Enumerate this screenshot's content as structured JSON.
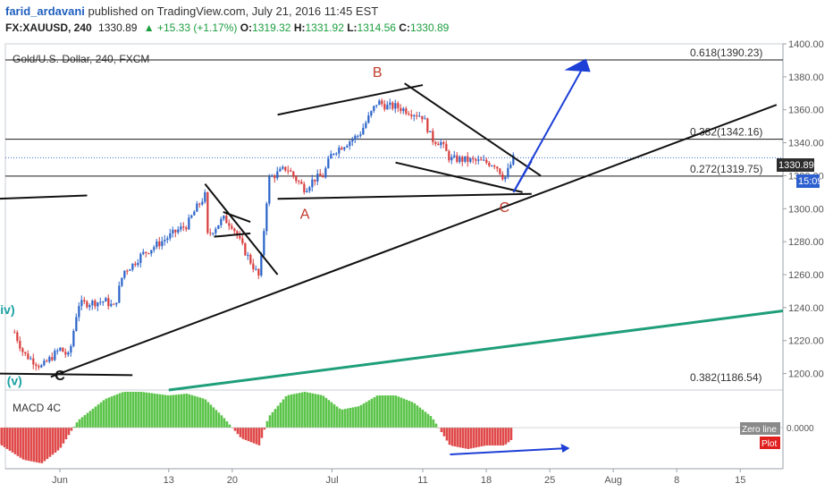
{
  "header": {
    "author": "farid_ardavani",
    "published_text": " published on TradingView.com, July 21, 2016 11:45 EST",
    "symbol": "FX:XAUUSD, 240",
    "last": "1330.89",
    "change": "▲ +15.33 (+1.17%)",
    "o_label": "O:",
    "o_value": "1319.32",
    "h_label": "H:",
    "h_value": "1331.92",
    "l_label": "L:",
    "l_value": "1314.56",
    "c_label": "C:",
    "c_value": "1330.89"
  },
  "chart_data": [
    {
      "type": "candlestick",
      "title": "Gold/U.S. Dollar, 240, FXCM",
      "y_axis": {
        "min": 1190,
        "max": 1400,
        "ticks": [
          1200,
          1220,
          1240,
          1260,
          1280,
          1300,
          1320,
          1340,
          1360,
          1380,
          1400
        ],
        "side": "right"
      },
      "x_axis": {
        "tick_labels": [
          "Jun",
          "13",
          "20",
          "Jul",
          "11",
          "18",
          "25",
          "Aug",
          "8",
          "15"
        ]
      },
      "last_price_label": "1330.89",
      "countdown_label": "15:09",
      "price_path": [
        {
          "date": "2016-05-27",
          "price": 1225
        },
        {
          "date": "2016-05-28",
          "price": 1212
        },
        {
          "date": "2016-05-30",
          "price": 1204
        },
        {
          "date": "2016-06-01",
          "price": 1215
        },
        {
          "date": "2016-06-02",
          "price": 1210
        },
        {
          "date": "2016-06-03",
          "price": 1242
        },
        {
          "date": "2016-06-06",
          "price": 1244
        },
        {
          "date": "2016-06-07",
          "price": 1240
        },
        {
          "date": "2016-06-08",
          "price": 1262
        },
        {
          "date": "2016-06-09",
          "price": 1266
        },
        {
          "date": "2016-06-10",
          "price": 1272
        },
        {
          "date": "2016-06-13",
          "price": 1283
        },
        {
          "date": "2016-06-14",
          "price": 1287
        },
        {
          "date": "2016-06-15",
          "price": 1290
        },
        {
          "date": "2016-06-16",
          "price": 1300
        },
        {
          "date": "2016-06-17",
          "price": 1308
        },
        {
          "date": "2016-06-17",
          "price": 1282
        },
        {
          "date": "2016-06-19",
          "price": 1294
        },
        {
          "date": "2016-06-20",
          "price": 1290
        },
        {
          "date": "2016-06-21",
          "price": 1278
        },
        {
          "date": "2016-06-22",
          "price": 1268
        },
        {
          "date": "2016-06-23",
          "price": 1258
        },
        {
          "date": "2016-06-24",
          "price": 1318
        },
        {
          "date": "2016-06-26",
          "price": 1325
        },
        {
          "date": "2016-06-27",
          "price": 1318
        },
        {
          "date": "2016-06-28",
          "price": 1312
        },
        {
          "date": "2016-06-29",
          "price": 1318
        },
        {
          "date": "2016-06-30",
          "price": 1320
        },
        {
          "date": "2016-07-01",
          "price": 1334
        },
        {
          "date": "2016-07-04",
          "price": 1345
        },
        {
          "date": "2016-07-05",
          "price": 1355
        },
        {
          "date": "2016-07-06",
          "price": 1365
        },
        {
          "date": "2016-07-07",
          "price": 1362
        },
        {
          "date": "2016-07-08",
          "price": 1362
        },
        {
          "date": "2016-07-11",
          "price": 1356
        },
        {
          "date": "2016-07-12",
          "price": 1342
        },
        {
          "date": "2016-07-13",
          "price": 1340
        },
        {
          "date": "2016-07-14",
          "price": 1330
        },
        {
          "date": "2016-07-15",
          "price": 1330
        },
        {
          "date": "2016-07-18",
          "price": 1328
        },
        {
          "date": "2016-07-19",
          "price": 1327
        },
        {
          "date": "2016-07-20",
          "price": 1318
        },
        {
          "date": "2016-07-21",
          "price": 1330.89
        }
      ],
      "fib_levels": [
        {
          "label": "0.618(1390.23)",
          "price": 1390.23
        },
        {
          "label": "0.382(1342.16)",
          "price": 1342.16
        },
        {
          "label": "0.272(1319.75)",
          "price": 1319.75
        },
        {
          "label": "0.382(1186.54)",
          "price": 1186.54
        }
      ],
      "wave_labels": [
        {
          "text": "B",
          "date": "2016-07-06",
          "price": 1380
        },
        {
          "text": "A",
          "date": "2016-06-28",
          "price": 1294
        },
        {
          "text": "C",
          "date": "2016-07-20",
          "price": 1298
        },
        {
          "text": "(iv)",
          "date": "2016-05-26",
          "price": 1236
        },
        {
          "text": "(v)",
          "date": "2016-05-27",
          "price": 1193
        },
        {
          "text": "C",
          "date": "2016-06-01",
          "price": 1196
        }
      ],
      "colors": {
        "up": "#2962c8",
        "down": "#d93b3b",
        "trend": "#111111",
        "projection": "#1e3fd6",
        "green_line": "#1f9e7a",
        "wave_label": "#c0392b"
      }
    },
    {
      "type": "bar",
      "title": "MACD 4C",
      "zero_line_label": "Zero line",
      "plot_label": "Plot",
      "y_tick_label": "0.0000",
      "histogram": [
        {
          "date": "2016-05-25",
          "value": -0.4
        },
        {
          "date": "2016-05-28",
          "value": -0.9
        },
        {
          "date": "2016-05-30",
          "value": -1.0
        },
        {
          "date": "2016-06-01",
          "value": -0.6
        },
        {
          "date": "2016-06-03",
          "value": 0.2
        },
        {
          "date": "2016-06-06",
          "value": 0.8
        },
        {
          "date": "2016-06-08",
          "value": 1.0
        },
        {
          "date": "2016-06-10",
          "value": 1.0
        },
        {
          "date": "2016-06-13",
          "value": 0.9
        },
        {
          "date": "2016-06-15",
          "value": 0.95
        },
        {
          "date": "2016-06-17",
          "value": 0.8
        },
        {
          "date": "2016-06-19",
          "value": 0.3
        },
        {
          "date": "2016-06-21",
          "value": -0.3
        },
        {
          "date": "2016-06-23",
          "value": -0.5
        },
        {
          "date": "2016-06-24",
          "value": 0.3
        },
        {
          "date": "2016-06-26",
          "value": 0.9
        },
        {
          "date": "2016-06-28",
          "value": 1.0
        },
        {
          "date": "2016-06-30",
          "value": 0.9
        },
        {
          "date": "2016-07-02",
          "value": 0.5
        },
        {
          "date": "2016-07-04",
          "value": 0.6
        },
        {
          "date": "2016-07-06",
          "value": 0.9
        },
        {
          "date": "2016-07-08",
          "value": 0.9
        },
        {
          "date": "2016-07-10",
          "value": 0.7
        },
        {
          "date": "2016-07-12",
          "value": 0.3
        },
        {
          "date": "2016-07-13",
          "value": -0.1
        },
        {
          "date": "2016-07-14",
          "value": -0.5
        },
        {
          "date": "2016-07-16",
          "value": -0.6
        },
        {
          "date": "2016-07-18",
          "value": -0.5
        },
        {
          "date": "2016-07-20",
          "value": -0.5
        },
        {
          "date": "2016-07-21",
          "value": -0.3
        }
      ],
      "colors": {
        "positive": "#5cc44a",
        "negative": "#e04a4a",
        "arrow": "#1e3fd6"
      }
    }
  ]
}
